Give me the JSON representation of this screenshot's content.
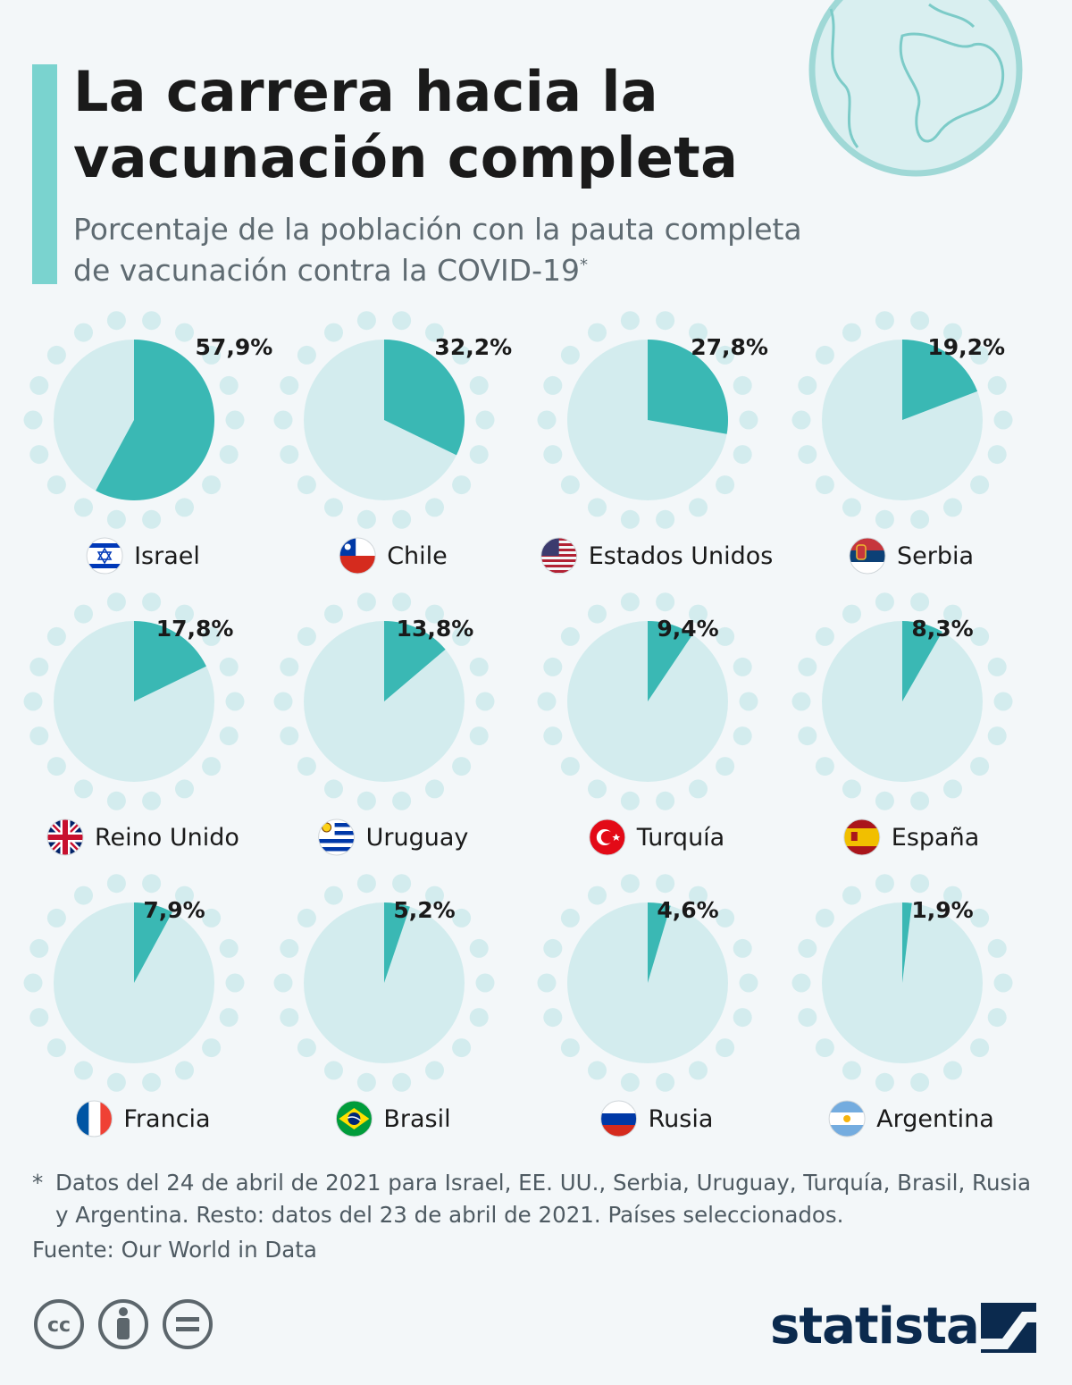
{
  "header": {
    "title": "La carrera hacia la\nvacunación completa",
    "subtitle_line1": "Porcentaje de la población con la pauta completa",
    "subtitle_line2": "de vacunación contra la COVID-19",
    "subtitle_mark": "*"
  },
  "chart_data": {
    "type": "pie",
    "unit": "%",
    "items": [
      {
        "country": "Israel",
        "value": 57.9,
        "label": "57,9%",
        "flag": "israel-flag"
      },
      {
        "country": "Chile",
        "value": 32.2,
        "label": "32,2%",
        "flag": "chile-flag"
      },
      {
        "country": "Estados Unidos",
        "value": 27.8,
        "label": "27,8%",
        "flag": "usa-flag"
      },
      {
        "country": "Serbia",
        "value": 19.2,
        "label": "19,2%",
        "flag": "serbia-flag"
      },
      {
        "country": "Reino Unido",
        "value": 17.8,
        "label": "17,8%",
        "flag": "uk-flag"
      },
      {
        "country": "Uruguay",
        "value": 13.8,
        "label": "13,8%",
        "flag": "uruguay-flag"
      },
      {
        "country": "Turquía",
        "value": 9.4,
        "label": "9,4%",
        "flag": "turkey-flag"
      },
      {
        "country": "España",
        "value": 8.3,
        "label": "8,3%",
        "flag": "spain-flag"
      },
      {
        "country": "Francia",
        "value": 7.9,
        "label": "7,9%",
        "flag": "france-flag"
      },
      {
        "country": "Brasil",
        "value": 5.2,
        "label": "5,2%",
        "flag": "brazil-flag"
      },
      {
        "country": "Rusia",
        "value": 4.6,
        "label": "4,6%",
        "flag": "russia-flag"
      },
      {
        "country": "Argentina",
        "value": 1.9,
        "label": "1,9%",
        "flag": "argentina-flag"
      }
    ],
    "colors": {
      "filled": "#3ab8b4",
      "remaining": "#d3ecee",
      "dots": "#d3ecee"
    }
  },
  "footer": {
    "footnote_mark": "*",
    "footnote": "Datos del 24 de abril de 2021 para Israel, EE. UU., Serbia, Uruguay, Turquía, Brasil, Rusia y Argentina. Resto: datos del 23 de abril de 2021. Países seleccionados.",
    "source": "Fuente: Our World in Data",
    "brand": "statista",
    "license_icons": [
      "cc-icon",
      "attribution-icon",
      "no-derivatives-icon"
    ]
  }
}
